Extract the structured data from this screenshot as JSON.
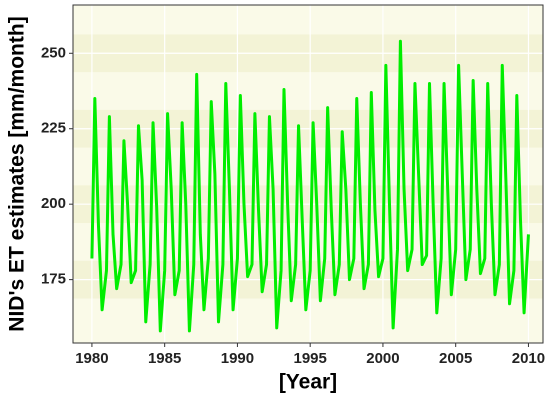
{
  "chart_data": {
    "type": "line",
    "xlabel": "[Year]",
    "ylabel": "NID's ET estimates [mm/month]",
    "x": [
      1980,
      1980.2,
      1980.45,
      1980.7,
      1981,
      1981.2,
      1981.45,
      1981.7,
      1982,
      1982.2,
      1982.45,
      1982.7,
      1983,
      1983.2,
      1983.45,
      1983.7,
      1984,
      1984.2,
      1984.45,
      1984.7,
      1985,
      1985.2,
      1985.45,
      1985.7,
      1986,
      1986.2,
      1986.45,
      1986.7,
      1987,
      1987.2,
      1987.45,
      1987.7,
      1988,
      1988.2,
      1988.45,
      1988.7,
      1989,
      1989.2,
      1989.45,
      1989.7,
      1990,
      1990.2,
      1990.45,
      1990.7,
      1991,
      1991.2,
      1991.45,
      1991.7,
      1992,
      1992.2,
      1992.45,
      1992.7,
      1993,
      1993.2,
      1993.45,
      1993.7,
      1994,
      1994.2,
      1994.45,
      1994.7,
      1995,
      1995.2,
      1995.45,
      1995.7,
      1996,
      1996.2,
      1996.45,
      1996.7,
      1997,
      1997.2,
      1997.45,
      1997.7,
      1998,
      1998.2,
      1998.45,
      1998.7,
      1999,
      1999.2,
      1999.45,
      1999.7,
      2000,
      2000.2,
      2000.45,
      2000.7,
      2001,
      2001.2,
      2001.45,
      2001.7,
      2002,
      2002.2,
      2002.45,
      2002.7,
      2003,
      2003.2,
      2003.45,
      2003.7,
      2004,
      2004.2,
      2004.45,
      2004.7,
      2005,
      2005.2,
      2005.45,
      2005.7,
      2006,
      2006.2,
      2006.45,
      2006.7,
      2007,
      2007.2,
      2007.45,
      2007.7,
      2008,
      2008.2,
      2008.45,
      2008.7,
      2009,
      2009.2,
      2009.45,
      2009.7,
      2010
    ],
    "series": [
      {
        "color": "#00ee00",
        "values": [
          182,
          235,
          193,
          165,
          178,
          229,
          190,
          172,
          180,
          221,
          200,
          174,
          178,
          226,
          208,
          161,
          180,
          227,
          199,
          158,
          178,
          230,
          205,
          170,
          178,
          227,
          200,
          158,
          180,
          243,
          190,
          165,
          182,
          234,
          210,
          161,
          180,
          240,
          205,
          165,
          182,
          236,
          200,
          176,
          180,
          230,
          198,
          171,
          180,
          229,
          205,
          159,
          178,
          238,
          200,
          168,
          180,
          226,
          195,
          165,
          178,
          227,
          200,
          168,
          182,
          232,
          198,
          170,
          180,
          224,
          205,
          175,
          182,
          235,
          200,
          172,
          180,
          237,
          198,
          176,
          182,
          246,
          200,
          159,
          185,
          254,
          205,
          178,
          185,
          240,
          210,
          180,
          183,
          240,
          200,
          164,
          182,
          240,
          205,
          170,
          185,
          246,
          210,
          175,
          185,
          241,
          205,
          177,
          182,
          240,
          200,
          170,
          180,
          246,
          208,
          167,
          178,
          236,
          195,
          164,
          190
        ]
      }
    ],
    "xlim": [
      1978.7,
      2011.0
    ],
    "xticks": [
      1980,
      1985,
      1990,
      1995,
      2000,
      2005,
      2010
    ],
    "ylim": [
      154,
      266
    ],
    "yticks": [
      175,
      200,
      225,
      250
    ],
    "grid": true
  }
}
